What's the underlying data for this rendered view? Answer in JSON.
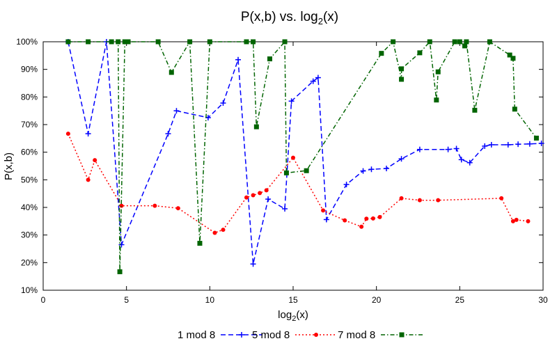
{
  "chart_data": {
    "type": "line",
    "title": {
      "main": "P(x,b) vs. log",
      "sub": "2",
      "tail": "(x)"
    },
    "xlabel": {
      "main": "log",
      "sub": "2",
      "tail": "(x)"
    },
    "ylabel": "P(x,b)",
    "xlim": [
      0,
      30
    ],
    "ylim": [
      10,
      100
    ],
    "x_ticks": [
      0,
      5,
      10,
      15,
      20,
      25,
      30
    ],
    "x_tick_labels": [
      "0",
      "5",
      "10",
      "15",
      "20",
      "25",
      "30"
    ],
    "y_ticks": [
      10,
      20,
      30,
      40,
      50,
      60,
      70,
      80,
      90,
      100
    ],
    "y_tick_labels": [
      "10%",
      "20%",
      "30%",
      "40%",
      "50%",
      "60%",
      "70%",
      "80%",
      "90%",
      "100%"
    ],
    "grid": false,
    "legend_position": "bottom",
    "series": [
      {
        "name": "1 mod 8",
        "color": "#0000ff",
        "marker": "plus",
        "dash": "dashed",
        "x": [
          1.5,
          2.7,
          3.8,
          4.7,
          7.5,
          8.0,
          9.9,
          10.8,
          11.7,
          12.6,
          13.5,
          14.5,
          14.9,
          16.2,
          16.5,
          17.0,
          18.2,
          19.2,
          19.7,
          20.6,
          21.5,
          22.6,
          24.3,
          24.8,
          25.1,
          25.6,
          26.5,
          26.9,
          27.9,
          28.5,
          29.2,
          29.9
        ],
        "y": [
          100,
          66.7,
          100,
          26.5,
          66.7,
          75,
          72.5,
          77.8,
          93.5,
          19.5,
          43,
          39.5,
          78.5,
          85.7,
          87,
          35.6,
          48.3,
          53.2,
          53.8,
          54.1,
          57.6,
          61,
          61,
          61.3,
          57.3,
          56.2,
          62.2,
          62.7,
          62.7,
          62.9,
          63,
          63.2
        ]
      },
      {
        "name": "5 mod 8",
        "color": "#ff0000",
        "marker": "circle",
        "dash": "dotted",
        "x": [
          1.5,
          2.7,
          3.1,
          4.7,
          6.7,
          8.1,
          10.3,
          10.8,
          12.2,
          12.6,
          13.0,
          13.4,
          15.0,
          16.8,
          18.1,
          19.1,
          19.4,
          19.8,
          20.2,
          21.5,
          22.6,
          23.7,
          27.5,
          28.2,
          28.4,
          29.1
        ],
        "y": [
          66.7,
          50,
          57.1,
          40.6,
          40.6,
          39.7,
          30.8,
          31.9,
          43.6,
          44.4,
          45.2,
          46.2,
          58,
          38.9,
          35.3,
          33,
          35.9,
          36,
          36.5,
          43.3,
          42.6,
          42.6,
          43.3,
          35,
          35.5,
          35
        ]
      },
      {
        "name": "7 mod 8",
        "color": "#006400",
        "marker": "square",
        "dash": "dashdot",
        "x": [
          1.5,
          2.7,
          4.1,
          4.5,
          4.6,
          4.9,
          5.1,
          6.9,
          7.7,
          8.8,
          9.4,
          10.0,
          12.2,
          12.6,
          12.8,
          13.6,
          14.5,
          14.6,
          15.8,
          20.3,
          21.0,
          21.5,
          21.5,
          22.6,
          23.2,
          23.6,
          23.7,
          24.7,
          25.0,
          25.3,
          25.4,
          25.9,
          26.8,
          28.0,
          28.2,
          28.3,
          29.6
        ],
        "y": [
          100,
          100,
          100,
          100,
          16.7,
          100,
          100,
          100,
          88.9,
          100,
          27,
          100,
          100,
          100,
          69.2,
          93.8,
          100,
          52.5,
          53.3,
          95.8,
          100,
          86.4,
          90.2,
          96,
          100,
          78.9,
          89.1,
          100,
          100,
          98.5,
          100,
          75.2,
          100,
          95.2,
          94,
          75.6,
          65.1
        ]
      }
    ]
  }
}
